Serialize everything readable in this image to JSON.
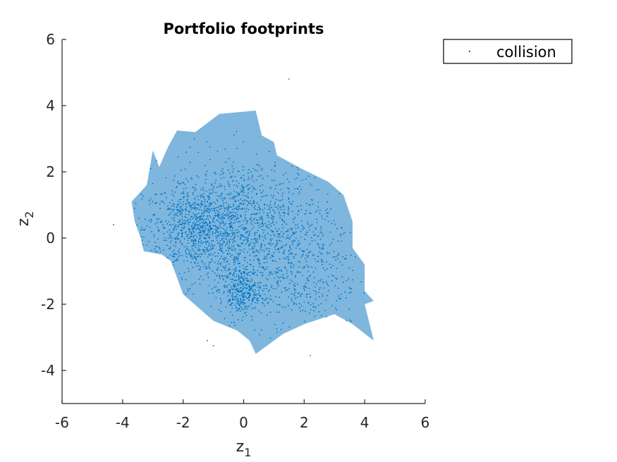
{
  "chart_data": {
    "type": "scatter",
    "title": "Portfolio footprints",
    "xlabel": {
      "base": "z",
      "sub": "1"
    },
    "ylabel": {
      "base": "z",
      "sub": "2"
    },
    "xlim": [
      -6,
      6
    ],
    "ylim": [
      -5,
      6
    ],
    "xticks": [
      -6,
      -4,
      -2,
      0,
      2,
      4,
      6
    ],
    "yticks": [
      -4,
      -2,
      0,
      2,
      4,
      6
    ],
    "grid": false,
    "legend": {
      "position": "top-right outside",
      "entries": [
        "collision"
      ]
    },
    "colors": {
      "footprint_fill": "#7eb6de",
      "points": "#0072bd",
      "axis": "#262626"
    },
    "footprint": {
      "name": "collision",
      "vertices": [
        [
          -3.0,
          2.65
        ],
        [
          -2.6,
          1.7
        ],
        [
          -3.0,
          1.7
        ],
        [
          -2.5,
          2.75
        ],
        [
          -2.2,
          3.25
        ],
        [
          -1.6,
          3.2
        ],
        [
          -0.8,
          3.75
        ],
        [
          0.4,
          3.85
        ],
        [
          0.6,
          3.1
        ],
        [
          1.0,
          2.9
        ],
        [
          1.1,
          2.5
        ],
        [
          1.9,
          2.1
        ],
        [
          2.8,
          1.7
        ],
        [
          3.3,
          1.3
        ],
        [
          3.6,
          0.5
        ],
        [
          3.6,
          -0.3
        ],
        [
          4.0,
          -0.8
        ],
        [
          4.0,
          -1.6
        ],
        [
          4.3,
          -1.9
        ],
        [
          4.0,
          -2.0
        ],
        [
          4.3,
          -3.1
        ],
        [
          3.6,
          -2.6
        ],
        [
          3.0,
          -2.3
        ],
        [
          2.0,
          -2.6
        ],
        [
          1.3,
          -2.9
        ],
        [
          0.4,
          -3.5
        ],
        [
          0.2,
          -3.1
        ],
        [
          -0.2,
          -2.8
        ],
        [
          -1.0,
          -2.5
        ],
        [
          -1.5,
          -2.1
        ],
        [
          -2.0,
          -1.7
        ],
        [
          -2.2,
          -1.2
        ],
        [
          -2.4,
          -0.7
        ],
        [
          -2.7,
          -0.5
        ],
        [
          -3.3,
          -0.4
        ],
        [
          -3.4,
          0.0
        ],
        [
          -3.6,
          0.5
        ],
        [
          -3.7,
          1.1
        ],
        [
          -3.5,
          1.3
        ],
        [
          -3.2,
          1.6
        ]
      ]
    },
    "outliers": [
      [
        -4.3,
        0.4
      ],
      [
        1.5,
        4.8
      ],
      [
        -1.2,
        -3.1
      ],
      [
        -1.0,
        -3.25
      ],
      [
        2.2,
        -3.55
      ]
    ],
    "clusters": [
      {
        "cx": -1.5,
        "cy": 0.3,
        "sx": 0.9,
        "sy": 0.7,
        "n": 900
      },
      {
        "cx": 0.3,
        "cy": 0.5,
        "sx": 1.3,
        "sy": 1.0,
        "n": 900
      },
      {
        "cx": -0.1,
        "cy": -1.6,
        "sx": 0.35,
        "sy": 0.35,
        "n": 300
      },
      {
        "cx": 1.5,
        "cy": -1.0,
        "sx": 1.2,
        "sy": 0.9,
        "n": 500
      }
    ]
  }
}
